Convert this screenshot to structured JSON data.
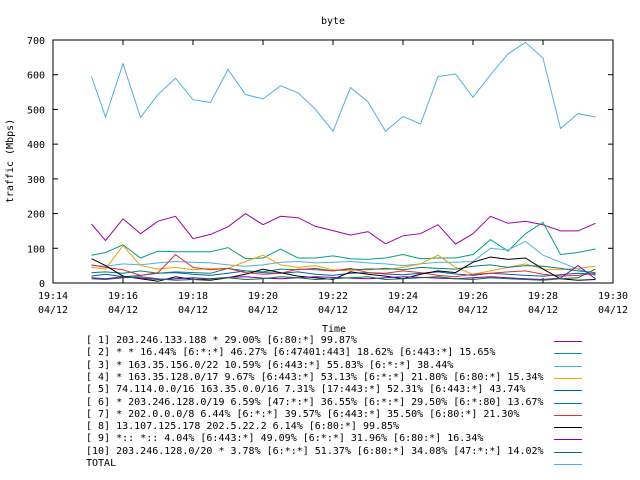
{
  "chart_data": {
    "type": "line",
    "title": "byte",
    "xlabel": "Time",
    "ylabel": "traffic (Mbps)",
    "ylim": [
      0,
      700
    ],
    "yticks": [
      0,
      100,
      200,
      300,
      400,
      500,
      600,
      700
    ],
    "xlim_minutes": [
      0,
      16
    ],
    "xticks": [
      {
        "time": "19:14",
        "date": "04/12",
        "min": 0
      },
      {
        "time": "19:16",
        "date": "04/12",
        "min": 2
      },
      {
        "time": "19:18",
        "date": "04/12",
        "min": 4
      },
      {
        "time": "19:20",
        "date": "04/12",
        "min": 6
      },
      {
        "time": "19:22",
        "date": "04/12",
        "min": 8
      },
      {
        "time": "19:24",
        "date": "04/12",
        "min": 10
      },
      {
        "time": "19:26",
        "date": "04/12",
        "min": 12
      },
      {
        "time": "19:28",
        "date": "04/12",
        "min": 14
      },
      {
        "time": "19:30",
        "date": "04/12",
        "min": 16
      }
    ],
    "x": [
      1.1,
      1.5,
      2.0,
      2.5,
      3.0,
      3.5,
      4.0,
      4.5,
      5.0,
      5.5,
      6.0,
      6.5,
      7.0,
      7.5,
      8.0,
      8.5,
      9.0,
      9.5,
      10.0,
      10.5,
      11.0,
      11.5,
      12.0,
      12.5,
      13.0,
      13.5,
      14.0,
      14.5,
      15.0,
      15.5
    ],
    "grid": false,
    "legend_position": "bottom",
    "series": [
      {
        "name": "[ 1] 203.246.133.188 * 29.00% [6:80:*] 99.87%",
        "color": "#a000a0",
        "values": [
          170,
          122,
          185,
          142,
          178,
          192,
          128,
          140,
          162,
          200,
          168,
          192,
          188,
          163,
          151,
          138,
          148,
          113,
          136,
          142,
          168,
          112,
          142,
          192,
          172,
          178,
          168,
          150,
          150,
          172
        ]
      },
      {
        "name": "[ 2] * * 16.44% [6:*:*] 46.27% [6:47401:443] 18.62% [6:443:*] 15.65%",
        "color": "#00a080",
        "values": [
          80,
          88,
          110,
          72,
          92,
          90,
          90,
          90,
          102,
          70,
          72,
          98,
          72,
          72,
          78,
          70,
          68,
          72,
          82,
          70,
          72,
          72,
          82,
          125,
          92,
          142,
          175,
          82,
          88,
          98
        ]
      },
      {
        "name": "[ 3] * 163.35.156.0/22 10.59% [6:443:*] 55.83% [6:*:*] 38.44%",
        "color": "#50b0e0",
        "values": [
          50,
          48,
          55,
          52,
          58,
          62,
          60,
          58,
          52,
          48,
          52,
          60,
          62,
          58,
          60,
          62,
          58,
          55,
          50,
          55,
          60,
          60,
          62,
          100,
          95,
          120,
          80,
          60,
          40,
          22
        ]
      },
      {
        "name": "[ 4] * 163.35.128.0/17 9.67% [6:443:*] 53.13% [6:*:*] 21.80% [6:80:*] 15.34%",
        "color": "#f0a000",
        "values": [
          45,
          40,
          108,
          50,
          40,
          45,
          38,
          42,
          42,
          62,
          80,
          52,
          45,
          50,
          38,
          35,
          42,
          38,
          45,
          55,
          80,
          45,
          25,
          35,
          45,
          55,
          40,
          38,
          42,
          48
        ]
      },
      {
        "name": "[ 5] 74.114.0.0/16 163.35.0.0/16 7.31% [17:443:*] 52.31% [6:443:*] 43.74%",
        "color": "#0060b0",
        "values": [
          20,
          25,
          18,
          22,
          28,
          30,
          25,
          22,
          28,
          35,
          30,
          28,
          32,
          25,
          22,
          28,
          30,
          26,
          24,
          28,
          32,
          26,
          22,
          28,
          25,
          22,
          20,
          24,
          28,
          25
        ]
      },
      {
        "name": "[ 6] * 203.246.128.0/19 6.59% [47:*:*] 36.55% [6:*:*] 29.50% [6:*:80] 13.67%",
        "color": "#008080",
        "values": [
          30,
          32,
          28,
          35,
          28,
          32,
          30,
          28,
          42,
          35,
          32,
          40,
          38,
          42,
          35,
          40,
          38,
          42,
          38,
          45,
          42,
          40,
          48,
          52,
          45,
          50,
          48,
          42,
          35,
          30
        ]
      },
      {
        "name": "[ 7] * 202.0.0.0/8 6.44% [6:*:*] 39.57% [6:443:*] 35.50% [6:80:*] 21.30%",
        "color": "#e03030",
        "values": [
          52,
          45,
          38,
          22,
          30,
          82,
          45,
          38,
          42,
          30,
          25,
          28,
          40,
          38,
          35,
          42,
          30,
          28,
          35,
          30,
          22,
          18,
          25,
          28,
          32,
          35,
          25,
          20,
          22,
          28
        ]
      },
      {
        "name": "[ 8] 13.107.125.178 202.5.22.2 6.14% [6:80:*] 99.85%",
        "color": "#000000",
        "values": [
          70,
          50,
          20,
          12,
          5,
          18,
          10,
          8,
          15,
          25,
          40,
          30,
          20,
          15,
          10,
          32,
          25,
          20,
          12,
          25,
          35,
          30,
          60,
          75,
          68,
          72,
          40,
          12,
          8,
          10
        ]
      },
      {
        "name": "[ 9] *:: *:: 4.04% [6:443:*] 49.09% [6:*:*] 31.96% [6:80:*] 16.34%",
        "color": "#8000c0",
        "values": [
          15,
          12,
          18,
          14,
          10,
          12,
          15,
          12,
          16,
          18,
          14,
          12,
          15,
          18,
          16,
          14,
          12,
          15,
          18,
          16,
          14,
          12,
          15,
          18,
          15,
          12,
          10,
          14,
          50,
          12
        ]
      },
      {
        "name": "[10] 203.246.128.0/20 * 3.78% [6:*:*] 51.37% [6:80:*] 34.08% [47:*:*] 14.02%",
        "color": "#107040",
        "values": [
          12,
          10,
          15,
          18,
          12,
          8,
          10,
          12,
          15,
          10,
          12,
          18,
          15,
          10,
          12,
          15,
          18,
          10,
          12,
          15,
          18,
          12,
          10,
          15,
          12,
          10,
          8,
          12,
          15,
          40
        ]
      },
      {
        "name": "TOTAL",
        "color": "#50b0e0",
        "values": [
          595,
          478,
          632,
          477,
          543,
          590,
          528,
          520,
          615,
          543,
          530,
          568,
          548,
          500,
          437,
          563,
          522,
          437,
          480,
          458,
          595,
          602,
          535,
          600,
          660,
          693,
          648,
          445,
          488,
          478
        ]
      }
    ]
  }
}
